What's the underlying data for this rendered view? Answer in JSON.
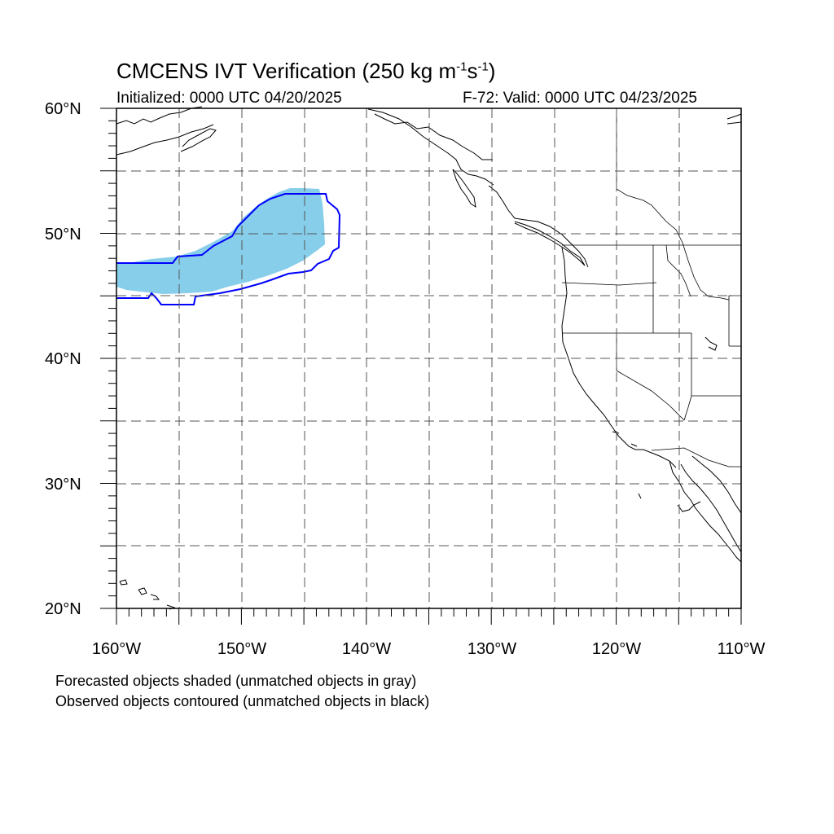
{
  "title": {
    "main": "CMCENS IVT Verification (250 kg m",
    "exp1": "-1",
    "mid": "s",
    "exp2": "-1",
    "end": ")"
  },
  "initialized": "Initialized: 0000 UTC 04/20/2025",
  "valid": "F-72: Valid: 0000 UTC 04/23/2025",
  "lat_labels": [
    "60°N",
    "50°N",
    "40°N",
    "30°N",
    "20°N"
  ],
  "lon_labels": [
    "160°W",
    "150°W",
    "140°W",
    "130°W",
    "120°W",
    "110°W"
  ],
  "footer": {
    "line1": "Forecasted objects shaded (unmatched objects in gray)",
    "line2": "Observed objects contoured (unmatched objects in black)"
  },
  "extent": {
    "lon": [
      -160,
      -110
    ],
    "lat": [
      20,
      60
    ]
  },
  "colors": {
    "forecast_fill": "#87ceeb",
    "observed_contour": "#0000ff"
  }
}
